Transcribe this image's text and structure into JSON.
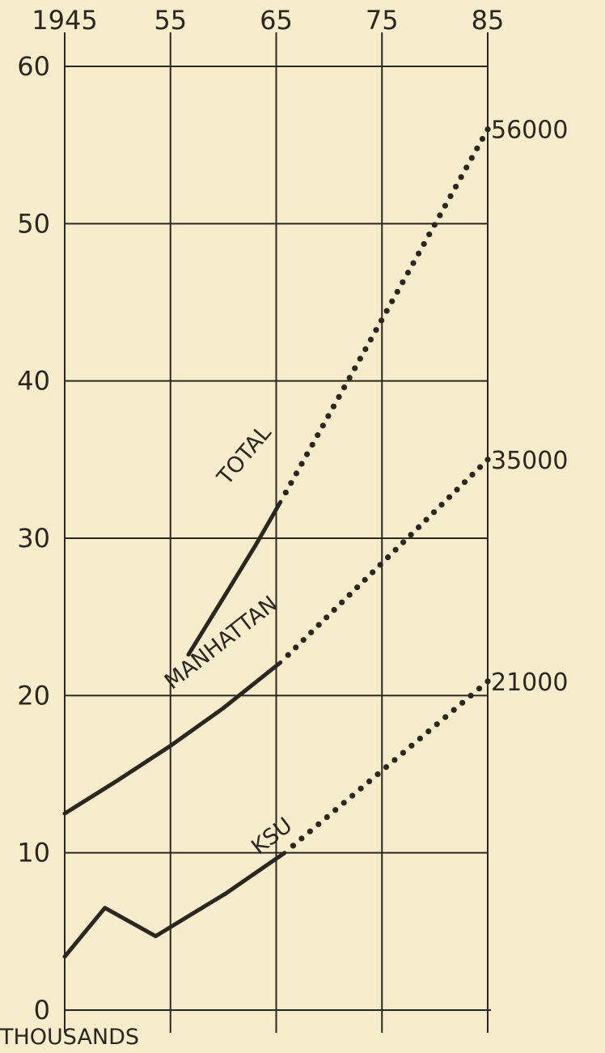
{
  "chart_data": {
    "type": "line",
    "x_ticks": [
      "1945",
      "55",
      "65",
      "75",
      "85"
    ],
    "y_ticks": [
      "0",
      "10",
      "20",
      "30",
      "40",
      "50",
      "60"
    ],
    "y_unit_label": "THOUSANDS",
    "xlim": [
      1945,
      1985
    ],
    "ylim": [
      0,
      60
    ],
    "grid": true,
    "series": [
      {
        "name": "TOTAL",
        "end_label": "56000",
        "solid": {
          "x": [
            1956.7,
            1960,
            1963,
            1965.4
          ],
          "y": [
            22.6,
            26.2,
            29.5,
            32.3
          ]
        },
        "projected": {
          "x": [
            1965.4,
            1985
          ],
          "y": [
            32.3,
            56.0
          ]
        }
      },
      {
        "name": "MANHATTAN",
        "end_label": "35000",
        "solid": {
          "x": [
            1945,
            1950,
            1955,
            1960,
            1965.4
          ],
          "y": [
            12.5,
            14.6,
            16.8,
            19.2,
            22.1
          ]
        },
        "projected": {
          "x": [
            1965.4,
            1985
          ],
          "y": [
            22.1,
            35.0
          ]
        }
      },
      {
        "name": "KSU",
        "end_label": "21000",
        "solid": {
          "x": [
            1945,
            1948.8,
            1953.6,
            1957,
            1960.2,
            1963,
            1965.8
          ],
          "y": [
            3.4,
            6.5,
            4.7,
            6.1,
            7.4,
            8.7,
            10.0
          ]
        },
        "projected": {
          "x": [
            1965.8,
            1985
          ],
          "y": [
            10.0,
            20.9
          ]
        }
      }
    ]
  }
}
